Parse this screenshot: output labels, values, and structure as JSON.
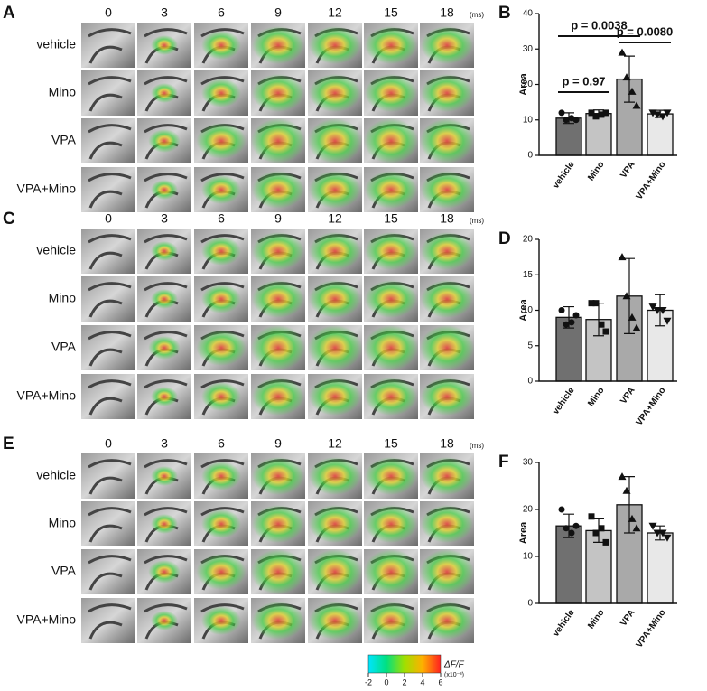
{
  "panels": [
    {
      "letter": "A",
      "times": [
        0,
        3,
        6,
        9,
        12,
        15,
        18
      ],
      "unit": "(ms)",
      "rows": [
        "vehicle",
        "Mino",
        "VPA",
        "VPA+Mino"
      ]
    },
    {
      "letter": "C",
      "times": [
        0,
        3,
        6,
        9,
        12,
        15,
        18
      ],
      "unit": "(ms)",
      "rows": [
        "vehicle",
        "Mino",
        "VPA",
        "VPA+Mino"
      ]
    },
    {
      "letter": "E",
      "times": [
        0,
        3,
        6,
        9,
        12,
        15,
        18
      ],
      "unit": "(ms)",
      "rows": [
        "vehicle",
        "Mino",
        "VPA",
        "VPA+Mino"
      ]
    }
  ],
  "colorbar": {
    "label": "ΔF/F",
    "unit": "(x10⁻³)",
    "lim": [
      -2,
      6
    ],
    "ticks": [
      -2,
      0,
      2,
      4,
      6
    ]
  },
  "chart_data": [
    {
      "type": "bar",
      "letter": "B",
      "ylabel": "Area",
      "categories": [
        "vehicle",
        "Mino",
        "VPA",
        "VPA+Mino"
      ],
      "values": [
        10.5,
        11.8,
        21.5,
        11.7
      ],
      "errors": [
        1.5,
        1.0,
        6.5,
        1.0
      ],
      "points": [
        [
          12,
          10,
          10.5,
          10
        ],
        [
          12,
          11,
          11.5,
          12
        ],
        [
          29,
          22,
          18,
          14
        ],
        [
          12,
          11.5,
          11,
          12
        ]
      ],
      "markers": [
        "circle",
        "square",
        "triangle",
        "triangle-down"
      ],
      "colors": [
        "#707070",
        "#c4c4c4",
        "#a9a9a9",
        "#e8e8e8"
      ],
      "ylim": [
        0,
        40
      ],
      "yticks": [
        0,
        10,
        20,
        30,
        40
      ],
      "annotations": [
        "p = 0.97",
        "p = 0.0038",
        "p = 0.0080"
      ]
    },
    {
      "type": "bar",
      "letter": "D",
      "ylabel": "Area",
      "categories": [
        "vehicle",
        "Mino",
        "VPA",
        "VPA+Mino"
      ],
      "values": [
        9,
        8.7,
        12,
        10
      ],
      "errors": [
        1.5,
        2.3,
        5.3,
        2.2
      ],
      "points": [
        [
          10,
          8,
          8.3,
          9.3
        ],
        [
          11,
          11,
          8,
          7
        ],
        [
          17.5,
          12,
          9,
          7.5
        ],
        [
          10.5,
          10,
          10,
          8.5
        ]
      ],
      "markers": [
        "circle",
        "square",
        "triangle",
        "triangle-down"
      ],
      "colors": [
        "#707070",
        "#c4c4c4",
        "#a9a9a9",
        "#e8e8e8"
      ],
      "ylim": [
        0,
        20
      ],
      "yticks": [
        0,
        5,
        10,
        15,
        20
      ]
    },
    {
      "type": "bar",
      "letter": "F",
      "ylabel": "Area",
      "categories": [
        "vehicle",
        "Mino",
        "VPA",
        "VPA+Mino"
      ],
      "values": [
        16.5,
        15.5,
        21,
        15
      ],
      "errors": [
        2.5,
        2.5,
        6,
        1.5
      ],
      "points": [
        [
          20,
          16,
          15,
          16.5
        ],
        [
          18.5,
          15,
          16,
          13
        ],
        [
          27,
          24,
          18,
          16
        ],
        [
          16.5,
          15,
          15,
          14
        ]
      ],
      "markers": [
        "circle",
        "square",
        "triangle",
        "triangle-down"
      ],
      "colors": [
        "#707070",
        "#c4c4c4",
        "#a9a9a9",
        "#e8e8e8"
      ],
      "ylim": [
        0,
        30
      ],
      "yticks": [
        0,
        10,
        20,
        30
      ]
    }
  ]
}
